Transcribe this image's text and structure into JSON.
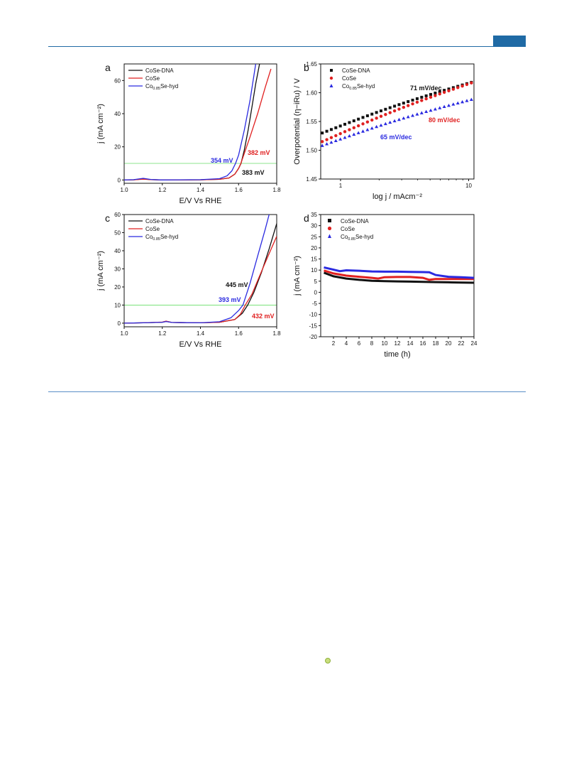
{
  "colors": {
    "header_rule": "#1f6aa5",
    "black": "#111111",
    "red": "#e02020",
    "blue": "#2a2ae0",
    "green": "#66dd66"
  },
  "chart_data": [
    {
      "panel": "a",
      "type": "line",
      "xlabel": "E/V Vs RHE",
      "ylabel": "j (mA cm⁻²)",
      "xlim": [
        1.0,
        1.8
      ],
      "ylim": [
        -2,
        70
      ],
      "xticks": [
        "1.0",
        "1.2",
        "1.4",
        "1.6",
        "1.8"
      ],
      "yticks": [
        "0",
        "20",
        "40",
        "60"
      ],
      "legend": [
        "CoSe-DNA",
        "CoSe",
        "Co0.85Se-hyd"
      ],
      "legend_position": "top-left",
      "reference_line_y": 10,
      "series": [
        {
          "name": "CoSe-DNA",
          "color": "black",
          "points": [
            [
              1.0,
              0
            ],
            [
              1.05,
              0.1
            ],
            [
              1.1,
              0.6
            ],
            [
              1.14,
              0.2
            ],
            [
              1.2,
              0
            ],
            [
              1.4,
              0.1
            ],
            [
              1.5,
              0.4
            ],
            [
              1.55,
              1.2
            ],
            [
              1.58,
              3.5
            ],
            [
              1.6,
              7
            ],
            [
              1.613,
              10
            ],
            [
              1.63,
              18
            ],
            [
              1.65,
              30
            ],
            [
              1.67,
              44
            ],
            [
              1.69,
              58
            ],
            [
              1.71,
              70
            ]
          ]
        },
        {
          "name": "CoSe",
          "color": "red",
          "points": [
            [
              1.0,
              0
            ],
            [
              1.05,
              0.1
            ],
            [
              1.1,
              0.5
            ],
            [
              1.14,
              0.2
            ],
            [
              1.2,
              0
            ],
            [
              1.4,
              0.1
            ],
            [
              1.5,
              0.4
            ],
            [
              1.55,
              1.2
            ],
            [
              1.58,
              3.5
            ],
            [
              1.6,
              7
            ],
            [
              1.612,
              10
            ],
            [
              1.63,
              16
            ],
            [
              1.66,
              26
            ],
            [
              1.7,
              40
            ],
            [
              1.74,
              56
            ],
            [
              1.77,
              67
            ]
          ]
        },
        {
          "name": "Co0.85Se-hyd",
          "color": "blue",
          "points": [
            [
              1.0,
              0
            ],
            [
              1.05,
              0.2
            ],
            [
              1.1,
              1.0
            ],
            [
              1.14,
              0.3
            ],
            [
              1.2,
              0
            ],
            [
              1.4,
              0.2
            ],
            [
              1.5,
              0.8
            ],
            [
              1.54,
              2.5
            ],
            [
              1.565,
              5.5
            ],
            [
              1.584,
              10
            ],
            [
              1.6,
              15
            ],
            [
              1.63,
              30
            ],
            [
              1.66,
              48
            ],
            [
              1.69,
              70
            ]
          ]
        }
      ],
      "annotations": [
        {
          "text": "354 mV",
          "color": "blue"
        },
        {
          "text": "382 mV",
          "color": "red"
        },
        {
          "text": "383 mV",
          "color": "black"
        }
      ]
    },
    {
      "panel": "b",
      "type": "scatter",
      "xlabel": "log j / mAcm⁻²",
      "ylabel": "Overpotential (η−iRu) / V",
      "xscale": "log",
      "xlim": [
        0.7,
        11
      ],
      "ylim": [
        1.45,
        1.65
      ],
      "xticks": [
        "1",
        "10"
      ],
      "yticks": [
        "1.45",
        "1.50",
        "1.55",
        "1.60",
        "1.65"
      ],
      "legend": [
        "CoSe-DNA",
        "CoSe",
        "Co0.85Se-hyd"
      ],
      "legend_position": "top-left",
      "series": [
        {
          "name": "CoSe-DNA",
          "color": "black",
          "marker": "square",
          "x_range": [
            0.72,
            10.5
          ],
          "y_range": [
            1.53,
            1.618
          ]
        },
        {
          "name": "CoSe",
          "color": "red",
          "marker": "circle",
          "x_range": [
            0.72,
            10.5
          ],
          "y_range": [
            1.515,
            1.617
          ]
        },
        {
          "name": "Co0.85Se-hyd",
          "color": "blue",
          "marker": "triangle",
          "x_range": [
            0.72,
            10.5
          ],
          "y_range": [
            1.508,
            1.588
          ]
        }
      ],
      "annotations": [
        {
          "text": "71 mV/dec",
          "color": "black"
        },
        {
          "text": "80 mV/dec",
          "color": "red"
        },
        {
          "text": "65 mV/dec",
          "color": "blue"
        }
      ]
    },
    {
      "panel": "c",
      "type": "line",
      "xlabel": "E/V Vs RHE",
      "ylabel": "j (mA cm⁻²)",
      "xlim": [
        1.0,
        1.8
      ],
      "ylim": [
        -2,
        60
      ],
      "xticks": [
        "1.0",
        "1.2",
        "1.4",
        "1.6",
        "1.8"
      ],
      "yticks": [
        "0",
        "10",
        "20",
        "30",
        "40",
        "50",
        "60"
      ],
      "legend": [
        "CoSe-DNA",
        "CoSe",
        "Co0.85Se-hyd"
      ],
      "legend_position": "top-left",
      "reference_line_y": 10,
      "series": [
        {
          "name": "CoSe-DNA",
          "color": "black",
          "points": [
            [
              1.0,
              0
            ],
            [
              1.1,
              0.2
            ],
            [
              1.2,
              0.5
            ],
            [
              1.22,
              1.0
            ],
            [
              1.25,
              0.4
            ],
            [
              1.4,
              0.2
            ],
            [
              1.5,
              0.5
            ],
            [
              1.58,
              2
            ],
            [
              1.62,
              5.5
            ],
            [
              1.648,
              10
            ],
            [
              1.68,
              17
            ],
            [
              1.72,
              28
            ],
            [
              1.76,
              41
            ],
            [
              1.8,
              55
            ]
          ]
        },
        {
          "name": "CoSe",
          "color": "red",
          "points": [
            [
              1.0,
              0
            ],
            [
              1.1,
              0.2
            ],
            [
              1.2,
              0.6
            ],
            [
              1.22,
              1.1
            ],
            [
              1.25,
              0.4
            ],
            [
              1.4,
              0.2
            ],
            [
              1.5,
              0.5
            ],
            [
              1.58,
              2
            ],
            [
              1.61,
              5
            ],
            [
              1.635,
              10
            ],
            [
              1.67,
              16
            ],
            [
              1.71,
              26
            ],
            [
              1.75,
              36
            ],
            [
              1.8,
              48
            ]
          ]
        },
        {
          "name": "Co0.85Se-hyd",
          "color": "blue",
          "points": [
            [
              1.0,
              0
            ],
            [
              1.1,
              0.2
            ],
            [
              1.2,
              0.5
            ],
            [
              1.22,
              0.9
            ],
            [
              1.25,
              0.4
            ],
            [
              1.4,
              0.2
            ],
            [
              1.5,
              0.8
            ],
            [
              1.56,
              3
            ],
            [
              1.6,
              7
            ],
            [
              1.623,
              10
            ],
            [
              1.66,
              22
            ],
            [
              1.7,
              37
            ],
            [
              1.74,
              52
            ],
            [
              1.76,
              60
            ]
          ]
        }
      ],
      "annotations": [
        {
          "text": "445 mV",
          "color": "black"
        },
        {
          "text": "393 mV",
          "color": "blue"
        },
        {
          "text": "432 mV",
          "color": "red"
        }
      ]
    },
    {
      "panel": "d",
      "type": "line",
      "xlabel": "time (h)",
      "ylabel": "j (mA cm⁻²)",
      "xlim": [
        0,
        24
      ],
      "ylim": [
        -20,
        35
      ],
      "xticks": [
        "2",
        "4",
        "6",
        "8",
        "10",
        "12",
        "14",
        "16",
        "18",
        "20",
        "22",
        "24"
      ],
      "yticks": [
        "-20",
        "-15",
        "-10",
        "-5",
        "0",
        "5",
        "10",
        "15",
        "20",
        "25",
        "30",
        "35"
      ],
      "legend": [
        "CoSe-DNA",
        "CoSe",
        "Co0.85Se-hyd"
      ],
      "legend_position": "top-left",
      "series": [
        {
          "name": "CoSe-DNA",
          "color": "black",
          "points": [
            [
              0.5,
              8.8
            ],
            [
              2,
              7.2
            ],
            [
              4,
              6.2
            ],
            [
              6,
              5.6
            ],
            [
              8,
              5.2
            ],
            [
              10,
              5.0
            ],
            [
              12,
              4.9
            ],
            [
              14,
              4.8
            ],
            [
              16,
              4.7
            ],
            [
              18,
              4.6
            ],
            [
              20,
              4.5
            ],
            [
              22,
              4.4
            ],
            [
              24,
              4.3
            ]
          ]
        },
        {
          "name": "CoSe",
          "color": "red",
          "points": [
            [
              0.5,
              9.8
            ],
            [
              2,
              8.5
            ],
            [
              4,
              7.5
            ],
            [
              6,
              7.0
            ],
            [
              8,
              6.5
            ],
            [
              9,
              6.2
            ],
            [
              10,
              6.8
            ],
            [
              12,
              6.9
            ],
            [
              14,
              6.9
            ],
            [
              16,
              6.5
            ],
            [
              17,
              5.6
            ],
            [
              18,
              6.0
            ],
            [
              20,
              6.0
            ],
            [
              22,
              6.0
            ],
            [
              24,
              6.0
            ]
          ]
        },
        {
          "name": "Co0.85Se-hyd",
          "color": "blue",
          "points": [
            [
              0.5,
              11.2
            ],
            [
              2,
              10.2
            ],
            [
              3,
              9.5
            ],
            [
              4,
              9.9
            ],
            [
              6,
              9.7
            ],
            [
              8,
              9.4
            ],
            [
              10,
              9.3
            ],
            [
              12,
              9.3
            ],
            [
              14,
              9.2
            ],
            [
              16,
              9.1
            ],
            [
              17,
              9.0
            ],
            [
              18,
              7.8
            ],
            [
              20,
              7.0
            ],
            [
              22,
              6.8
            ],
            [
              24,
              6.5
            ]
          ]
        }
      ]
    }
  ]
}
